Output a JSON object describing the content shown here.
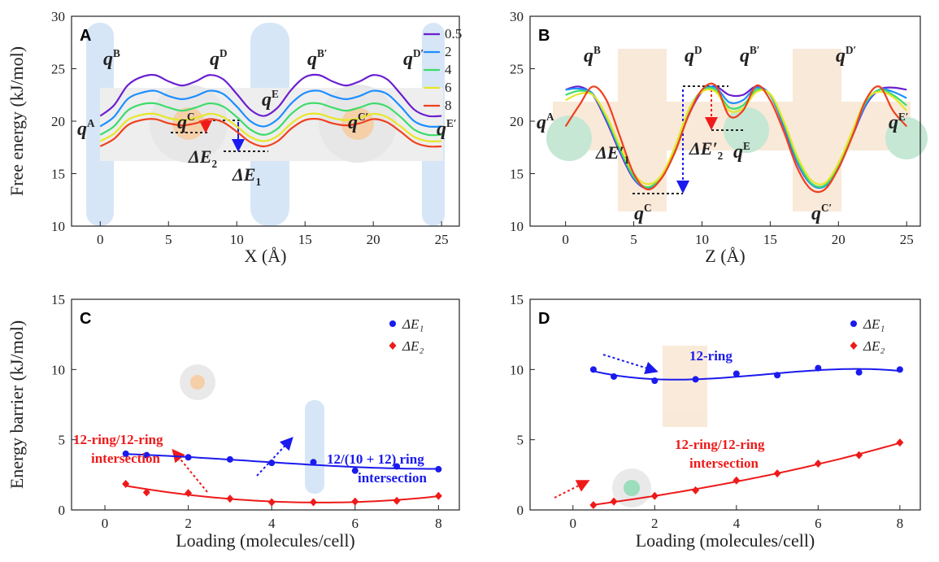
{
  "chart_data": [
    {
      "type": "line",
      "panel": "A",
      "x_label": "X (Å)",
      "y_label": "Free energy (kJ/mol)",
      "x": [
        0,
        1,
        2,
        3,
        4,
        5,
        6,
        7,
        8,
        9,
        10,
        11,
        12,
        13,
        14,
        15,
        16,
        17,
        18,
        19,
        20,
        21,
        22,
        23,
        24,
        25
      ],
      "xlim": [
        -2.1,
        26.3
      ],
      "ylim": [
        10,
        30
      ],
      "xticks": [
        0,
        5,
        10,
        15,
        20,
        25
      ],
      "yticks": [
        10,
        15,
        20,
        25,
        30
      ],
      "legend": "upper right",
      "series": [
        {
          "name": "0.5",
          "color": "#6a1fd0",
          "values": [
            20.5,
            21.5,
            23.4,
            24.2,
            24.4,
            23.8,
            23.4,
            23.8,
            24.4,
            24.0,
            22.6,
            21.1,
            20.5,
            21.3,
            23.0,
            24.2,
            24.4,
            23.8,
            23.4,
            23.8,
            24.4,
            24.0,
            22.6,
            21.1,
            20.5,
            20.5
          ]
        },
        {
          "name": "2",
          "color": "#1e8fff",
          "values": [
            19.5,
            20.4,
            22.1,
            22.7,
            22.9,
            22.4,
            22.1,
            22.4,
            22.9,
            22.6,
            21.4,
            20.0,
            19.5,
            20.2,
            21.7,
            22.7,
            22.9,
            22.4,
            22.1,
            22.4,
            22.9,
            22.6,
            21.4,
            20.0,
            19.5,
            19.5
          ]
        },
        {
          "name": "4",
          "color": "#3ddc6a",
          "values": [
            18.7,
            19.5,
            21.0,
            21.6,
            21.7,
            21.3,
            21.0,
            21.3,
            21.7,
            21.4,
            20.4,
            19.2,
            18.7,
            19.3,
            20.7,
            21.6,
            21.7,
            21.3,
            21.0,
            21.3,
            21.7,
            21.4,
            20.4,
            19.2,
            18.7,
            18.7
          ]
        },
        {
          "name": "6",
          "color": "#e6e62a",
          "values": [
            18.1,
            18.8,
            20.1,
            20.6,
            20.7,
            20.3,
            20.1,
            20.3,
            20.7,
            20.4,
            19.5,
            18.5,
            18.1,
            18.6,
            19.8,
            20.6,
            20.7,
            20.3,
            20.1,
            20.3,
            20.7,
            20.4,
            19.5,
            18.5,
            18.1,
            18.1
          ]
        },
        {
          "name": "8",
          "color": "#f0401e",
          "values": [
            17.6,
            18.3,
            19.6,
            20.1,
            20.2,
            19.8,
            19.6,
            19.8,
            20.2,
            19.9,
            19.0,
            18.0,
            17.6,
            18.1,
            19.3,
            20.1,
            20.2,
            19.8,
            19.6,
            19.8,
            20.2,
            19.9,
            19.0,
            18.0,
            17.6,
            17.6
          ]
        }
      ],
      "annotations": [
        {
          "text": "q",
          "sup": "A"
        },
        {
          "text": "q",
          "sup": "B"
        },
        {
          "text": "q",
          "sup": "C"
        },
        {
          "text": "q",
          "sup": "D"
        },
        {
          "text": "q",
          "sup": "E"
        },
        {
          "text": "q",
          "sup": "B′"
        },
        {
          "text": "q",
          "sup": "C′"
        },
        {
          "text": "q",
          "sup": "D′"
        },
        {
          "text": "q",
          "sup": "E′"
        },
        {
          "text": "ΔE",
          "sub": "2"
        },
        {
          "text": "ΔE",
          "sub": "1"
        }
      ]
    },
    {
      "type": "line",
      "panel": "B",
      "x_label": "Z (Å)",
      "x": [
        0,
        1,
        2,
        3,
        4,
        5,
        6,
        7,
        8,
        9,
        10,
        11,
        12,
        13,
        14,
        15,
        16,
        17,
        18,
        19,
        20,
        21,
        22,
        23,
        24,
        25
      ],
      "xlim": [
        -2.6,
        26.0
      ],
      "ylim": [
        10,
        30
      ],
      "xticks": [
        0,
        5,
        10,
        15,
        20,
        25
      ],
      "yticks": [
        10,
        15,
        20,
        25,
        30
      ],
      "series": [
        {
          "color": "#6a1fd0",
          "values": [
            23,
            23.3,
            22.5,
            20,
            17,
            14.5,
            13.6,
            14.5,
            17,
            20.5,
            22.8,
            23.3,
            22.5,
            22.5,
            23.3,
            22.5,
            19.5,
            16,
            14,
            13.8,
            15.5,
            18.5,
            21.5,
            23,
            23.2,
            23
          ]
        },
        {
          "color": "#1e8fff",
          "values": [
            23,
            23.1,
            22.6,
            20.2,
            17.2,
            14.6,
            13.6,
            14.6,
            17.2,
            20.8,
            22.9,
            23.2,
            21.8,
            22,
            23.2,
            22.5,
            19.6,
            16.1,
            14,
            13.8,
            15.6,
            18.6,
            21.6,
            23,
            22.8,
            22.2
          ]
        },
        {
          "color": "#3ddc6a",
          "values": [
            22.5,
            22.9,
            22.5,
            20.3,
            17.3,
            14.7,
            13.7,
            14.7,
            17.3,
            21,
            22.9,
            23,
            21.3,
            21.5,
            23,
            22.5,
            19.8,
            16.3,
            14.1,
            13.9,
            15.8,
            18.8,
            21.8,
            23,
            22.5,
            21.5
          ]
        },
        {
          "color": "#e6e62a",
          "values": [
            22,
            22.6,
            22.5,
            20.5,
            17.6,
            15,
            14,
            14.8,
            17.5,
            21,
            22.8,
            22.8,
            21,
            21.2,
            22.8,
            22.6,
            20,
            16.6,
            14.4,
            14.1,
            16,
            19,
            22,
            22.8,
            22.3,
            21
          ]
        },
        {
          "color": "#f0401e",
          "values": [
            19.5,
            21.5,
            23.3,
            22,
            18.5,
            15,
            13.5,
            14.5,
            17,
            20.5,
            23,
            23.4,
            20.5,
            21,
            23.4,
            22,
            19,
            15.5,
            13.5,
            13.5,
            15.5,
            18.5,
            22,
            23.3,
            21,
            19.5
          ]
        }
      ],
      "annotations": [
        {
          "text": "q",
          "sup": "A"
        },
        {
          "text": "q",
          "sup": "B"
        },
        {
          "text": "q",
          "sup": "C"
        },
        {
          "text": "q",
          "sup": "D"
        },
        {
          "text": "q",
          "sup": "E"
        },
        {
          "text": "q",
          "sup": "B′"
        },
        {
          "text": "q",
          "sup": "C′"
        },
        {
          "text": "q",
          "sup": "D′"
        },
        {
          "text": "q",
          "sup": "E′"
        },
        {
          "text": "ΔE′",
          "sub": "1"
        },
        {
          "text": "ΔE′",
          "sub": "2"
        }
      ]
    },
    {
      "type": "scatter",
      "panel": "C",
      "x_label": "Loading (molecules/cell)",
      "y_label": "Energy barrier (kJ/mol)",
      "x": [
        0.5,
        1,
        2,
        3,
        4,
        5,
        6,
        7,
        8
      ],
      "xlim": [
        -0.8,
        8.5
      ],
      "ylim": [
        0,
        15
      ],
      "xticks": [
        0,
        2,
        4,
        6,
        8
      ],
      "yticks": [
        0,
        5,
        10,
        15
      ],
      "legend": "upper right",
      "series": [
        {
          "name": "ΔE₁",
          "color": "#1a1aee",
          "marker": "circle",
          "values": [
            4.0,
            3.9,
            3.75,
            3.6,
            3.35,
            3.4,
            2.8,
            3.1,
            2.9
          ]
        },
        {
          "name": "ΔE₂",
          "color": "#ee1a1a",
          "marker": "diamond",
          "values": [
            1.85,
            1.25,
            1.2,
            0.8,
            0.55,
            0.55,
            0.6,
            0.65,
            1.0
          ]
        }
      ],
      "annotations": [
        {
          "text": "12-ring/12-ring"
        },
        {
          "text": "intersection"
        },
        {
          "text": "12/(10 + 12) ring"
        },
        {
          "text": "intersection"
        }
      ]
    },
    {
      "type": "scatter",
      "panel": "D",
      "x_label": "Loading (molecules/cell)",
      "x": [
        0.5,
        1,
        2,
        3,
        4,
        5,
        6,
        7,
        8
      ],
      "xlim": [
        -1.05,
        8.5
      ],
      "ylim": [
        0,
        15
      ],
      "xticks": [
        0,
        2,
        4,
        6,
        8
      ],
      "yticks": [
        0,
        5,
        10,
        15
      ],
      "legend": "upper right",
      "series": [
        {
          "name": "ΔE₁",
          "color": "#1a1aee",
          "marker": "circle",
          "values": [
            10.0,
            9.5,
            9.2,
            9.3,
            9.7,
            9.6,
            10.1,
            9.8,
            10.0
          ]
        },
        {
          "name": "ΔE₂",
          "color": "#ee1a1a",
          "marker": "diamond",
          "values": [
            0.35,
            0.6,
            1.0,
            1.4,
            2.1,
            2.6,
            3.3,
            3.9,
            4.8
          ]
        }
      ],
      "annotations": [
        {
          "text": "12-ring"
        },
        {
          "text": "12-ring/12-ring"
        },
        {
          "text": "intersection"
        }
      ]
    }
  ]
}
